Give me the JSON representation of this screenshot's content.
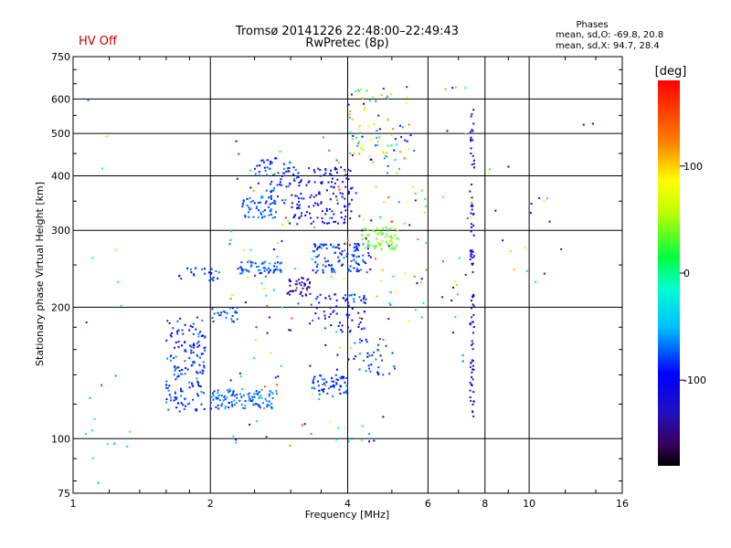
{
  "header": {
    "status": "HV Off",
    "status_color": "#cc0000",
    "title_line1": "Tromsø 20141226 22:48:00–22:49:43",
    "title_line2": "RwPretec (8p)"
  },
  "stats": {
    "title": "Phases",
    "line_o": "mean, sd,O: -69.8, 20.8",
    "line_x": "mean, sd,X:  94.7, 28.4"
  },
  "colorbar": {
    "unit_label": "[deg]",
    "ticks": [
      {
        "value": 100,
        "label": "100"
      },
      {
        "value": 0,
        "label": "0"
      },
      {
        "value": -100,
        "label": "-100"
      }
    ],
    "range": [
      -180,
      180
    ]
  },
  "chart_data": {
    "type": "scatter",
    "xlabel": "Frequency [MHz]",
    "ylabel": "Stationary phase Virtual Height [km]",
    "xscale": "log",
    "yscale": "log",
    "xlim": [
      1,
      16
    ],
    "ylim": [
      75,
      750
    ],
    "x_ticks": [
      {
        "value": 1,
        "label": "1"
      },
      {
        "value": 2,
        "label": "2"
      },
      {
        "value": 4,
        "label": "4"
      },
      {
        "value": 6,
        "label": "6"
      },
      {
        "value": 8,
        "label": "8"
      },
      {
        "value": 10,
        "label": "10"
      },
      {
        "value": 16,
        "label": "16"
      }
    ],
    "x_gridlines": [
      2,
      4,
      6,
      8,
      10
    ],
    "y_ticks": [
      {
        "value": 75,
        "label": "75"
      },
      {
        "value": 100,
        "label": "100"
      },
      {
        "value": 200,
        "label": "200"
      },
      {
        "value": 300,
        "label": "300"
      },
      {
        "value": 400,
        "label": "400"
      },
      {
        "value": 500,
        "label": "500"
      },
      {
        "value": 600,
        "label": "600"
      },
      {
        "value": 750,
        "label": "750"
      }
    ],
    "y_gridlines": [
      100,
      200,
      300,
      400,
      500,
      600
    ],
    "clusters": [
      {
        "x": [
          1.6,
          1.95
        ],
        "y": [
          115,
          190
        ],
        "phase": [
          -110,
          -60
        ],
        "count": 160
      },
      {
        "x": [
          1.7,
          2.1
        ],
        "y": [
          230,
          248
        ],
        "phase": [
          -100,
          -60
        ],
        "count": 25
      },
      {
        "x": [
          2.0,
          2.8
        ],
        "y": [
          117,
          130
        ],
        "phase": [
          -90,
          -50
        ],
        "count": 110
      },
      {
        "x": [
          2.0,
          2.3
        ],
        "y": [
          185,
          200
        ],
        "phase": [
          -90,
          -60
        ],
        "count": 25
      },
      {
        "x": [
          2.3,
          2.9
        ],
        "y": [
          235,
          255
        ],
        "phase": [
          -90,
          -55
        ],
        "count": 60
      },
      {
        "x": [
          2.35,
          2.8
        ],
        "y": [
          320,
          360
        ],
        "phase": [
          -90,
          -55
        ],
        "count": 50
      },
      {
        "x": [
          2.5,
          3.1
        ],
        "y": [
          345,
          440
        ],
        "phase": [
          -110,
          -60
        ],
        "count": 70
      },
      {
        "x": [
          3.0,
          4.1
        ],
        "y": [
          310,
          420
        ],
        "phase": [
          -130,
          -80
        ],
        "count": 140
      },
      {
        "x": [
          2.95,
          3.35
        ],
        "y": [
          212,
          235
        ],
        "phase": [
          -150,
          -120
        ],
        "count": 40
      },
      {
        "x": [
          3.35,
          4.5
        ],
        "y": [
          240,
          280
        ],
        "phase": [
          -110,
          -60
        ],
        "count": 110
      },
      {
        "x": [
          3.3,
          4.0
        ],
        "y": [
          125,
          140
        ],
        "phase": [
          -100,
          -60
        ],
        "count": 60
      },
      {
        "x": [
          3.3,
          4.4
        ],
        "y": [
          175,
          215
        ],
        "phase": [
          -120,
          -70
        ],
        "count": 70
      },
      {
        "x": [
          4.0,
          5.1
        ],
        "y": [
          140,
          170
        ],
        "phase": [
          -100,
          -60
        ],
        "count": 40
      },
      {
        "x": [
          4.3,
          5.2
        ],
        "y": [
          270,
          305
        ],
        "phase": [
          20,
          60
        ],
        "count": 60
      },
      {
        "x": [
          4.0,
          5.6
        ],
        "y": [
          420,
          640
        ],
        "phase": [
          -130,
          130
        ],
        "count": 80
      },
      {
        "x": [
          4.8,
          6.0
        ],
        "y": [
          180,
          480
        ],
        "phase": [
          -150,
          150
        ],
        "count": 40
      },
      {
        "x": [
          6.3,
          7.5
        ],
        "y": [
          150,
          640
        ],
        "phase": [
          -150,
          150
        ],
        "count": 25
      },
      {
        "x": [
          7.42,
          7.58
        ],
        "y": [
          110,
          570
        ],
        "phase": [
          -140,
          -100
        ],
        "count": 90
      },
      {
        "x": [
          8.0,
          12.0
        ],
        "y": [
          200,
          460
        ],
        "phase": [
          -150,
          150
        ],
        "count": 18
      },
      {
        "x": [
          1.05,
          1.35
        ],
        "y": [
          78,
          630
        ],
        "phase": [
          -90,
          60
        ],
        "count": 20
      },
      {
        "x": [
          2.2,
          4.8
        ],
        "y": [
          95,
          500
        ],
        "phase": [
          -160,
          160
        ],
        "count": 140
      },
      {
        "x": [
          13.0,
          14.5
        ],
        "y": [
          520,
          540
        ],
        "phase": [
          -140,
          -120
        ],
        "count": 2
      }
    ]
  }
}
